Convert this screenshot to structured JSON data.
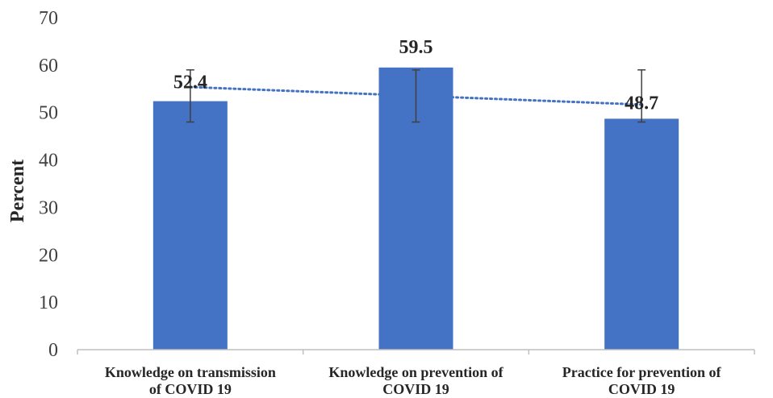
{
  "chart_data": {
    "type": "bar",
    "title": "",
    "xlabel": "",
    "ylabel": "Percent",
    "ylim": [
      0,
      70
    ],
    "yticks": [
      0,
      10,
      20,
      30,
      40,
      50,
      60,
      70
    ],
    "categories": [
      [
        "Knowledge on transmission",
        "of  COVID 19"
      ],
      [
        "Knowledge on prevention of",
        "COVID 19"
      ],
      [
        "Practice for prevention of",
        "COVID 19"
      ]
    ],
    "values": [
      52.4,
      59.5,
      48.7
    ],
    "data_labels": [
      "52.4",
      "59.5",
      "48.7"
    ],
    "error_bars": [
      {
        "low": 48,
        "high": 59
      },
      {
        "low": 48,
        "high": 59
      },
      {
        "low": 48,
        "high": 59
      }
    ],
    "trendline": {
      "type": "linear",
      "style": "dotted",
      "color": "#4472c4"
    },
    "bar_color": "#4472c4",
    "grid": false,
    "legend": "none"
  }
}
